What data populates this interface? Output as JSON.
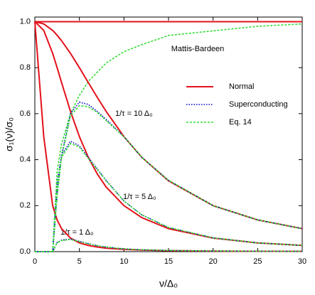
{
  "chart_data": {
    "type": "line",
    "x_label": "ν/Δ₀",
    "y_label": "σ₁(ν)/σ₀",
    "x": [
      0,
      1,
      2,
      2.5,
      3,
      4,
      5,
      6,
      7,
      8,
      10,
      12,
      15,
      20,
      25,
      30
    ],
    "xlim": [
      0,
      30
    ],
    "ylim": [
      0,
      1.02
    ],
    "xticks": [
      0,
      5,
      10,
      15,
      20,
      25,
      30
    ],
    "yticks": [
      {
        "value": 0,
        "label": "0.0"
      },
      0.2,
      0.4,
      0.6,
      0.8,
      {
        "value": 1,
        "label": "1.0"
      }
    ],
    "annotations": [
      "Mattis-Bardeen",
      "1/τ = 10 Δ₀",
      "1/τ = 5 Δ₀",
      "1/τ = 1 Δ₀"
    ],
    "series": [
      {
        "color": "#33dd33",
        "dash": "dashed",
        "values": [
          0,
          0,
          0,
          0.35,
          0.47,
          0.6,
          0.68,
          0.74,
          0.78,
          0.82,
          0.87,
          0.9,
          0.94,
          0.96,
          0.98,
          0.99
        ]
      },
      {
        "name": "Normal",
        "color": "#e3111b",
        "dash": "solid",
        "values": [
          1,
          1,
          1,
          1,
          1,
          1,
          1,
          1,
          1,
          1,
          1,
          1,
          1,
          1,
          1,
          1
        ]
      },
      {
        "color": "#e3111b",
        "dash": "solid",
        "values": [
          1,
          0.99,
          0.962,
          0.941,
          0.917,
          0.862,
          0.8,
          0.735,
          0.671,
          0.61,
          0.5,
          0.41,
          0.308,
          0.2,
          0.138,
          0.1
        ]
      },
      {
        "color": "#e3111b",
        "dash": "solid",
        "values": [
          1,
          0.962,
          0.862,
          0.8,
          0.735,
          0.61,
          0.5,
          0.41,
          0.338,
          0.281,
          0.2,
          0.148,
          0.1,
          0.059,
          0.038,
          0.027
        ]
      },
      {
        "color": "#e3111b",
        "dash": "solid",
        "values": [
          1,
          0.5,
          0.2,
          0.138,
          0.1,
          0.059,
          0.038,
          0.027,
          0.02,
          0.015,
          0.0099,
          0.0069,
          0.0044,
          0.0025,
          0.0016,
          0.0011
        ]
      },
      {
        "name": "Superconducting",
        "color": "#0000cc",
        "dash": "dotted",
        "values": [
          0,
          0,
          0,
          0.25,
          0.42,
          0.6,
          0.65,
          0.64,
          0.61,
          0.575,
          0.5,
          0.41,
          0.31,
          0.2,
          0.138,
          0.1
        ]
      },
      {
        "color": "#0000cc",
        "dash": "dotted",
        "values": [
          0,
          0,
          0,
          0.3,
          0.42,
          0.48,
          0.46,
          0.41,
          0.36,
          0.31,
          0.22,
          0.16,
          0.105,
          0.06,
          0.038,
          0.027
        ]
      },
      {
        "color": "#0000cc",
        "dash": "dotted",
        "values": [
          0,
          0,
          0,
          0.04,
          0.05,
          0.055,
          0.045,
          0.035,
          0.026,
          0.02,
          0.012,
          0.008,
          0.005,
          0.0028,
          0.0017,
          0.0012
        ]
      },
      {
        "name": "Eq. 14",
        "color": "#33dd33",
        "dash": "dashed",
        "values": [
          0,
          0,
          0,
          0.24,
          0.41,
          0.59,
          0.635,
          0.63,
          0.605,
          0.57,
          0.5,
          0.41,
          0.31,
          0.2,
          0.138,
          0.1
        ]
      },
      {
        "color": "#33dd33",
        "dash": "dashed",
        "values": [
          0,
          0,
          0,
          0.29,
          0.41,
          0.47,
          0.455,
          0.405,
          0.357,
          0.308,
          0.22,
          0.16,
          0.105,
          0.06,
          0.038,
          0.027
        ]
      },
      {
        "color": "#33dd33",
        "dash": "dashed",
        "values": [
          0,
          0,
          0,
          0.038,
          0.048,
          0.053,
          0.044,
          0.034,
          0.026,
          0.02,
          0.012,
          0.008,
          0.005,
          0.0028,
          0.0017,
          0.0012
        ]
      }
    ]
  }
}
